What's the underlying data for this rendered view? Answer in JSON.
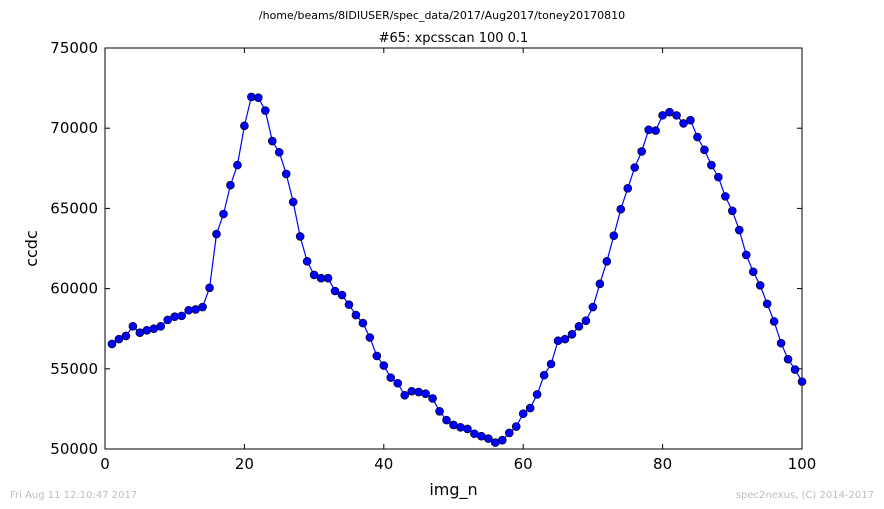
{
  "header": {
    "suptitle": "/home/beams/8IDIUSER/spec_data/2017/Aug2017/toney20170810",
    "title": "#65: xpcsscan 100 0.1"
  },
  "footer": {
    "left": "Fri Aug 11 12:10:47 2017",
    "right": "spec2nexus, (C) 2014-2017"
  },
  "colors": {
    "series": "#0000ff",
    "axes": "#000000",
    "footer": "#bdbdbd"
  },
  "chart_data": {
    "type": "line",
    "title": "#65: xpcsscan 100 0.1",
    "xlabel": "img_n",
    "ylabel": "ccdc",
    "xlim": [
      0,
      100
    ],
    "ylim": [
      50000,
      75000
    ],
    "xticks": [
      "0",
      "20",
      "40",
      "60",
      "80",
      "100"
    ],
    "yticks": [
      "50000",
      "55000",
      "60000",
      "65000",
      "70000",
      "75000"
    ],
    "xtick_values": [
      0,
      20,
      40,
      60,
      80,
      100
    ],
    "ytick_values": [
      50000,
      55000,
      60000,
      65000,
      70000,
      75000
    ],
    "grid": false,
    "marker": "circle",
    "x": [
      1,
      2,
      3,
      4,
      5,
      6,
      7,
      8,
      9,
      10,
      11,
      12,
      13,
      14,
      15,
      16,
      17,
      18,
      19,
      20,
      21,
      22,
      23,
      24,
      25,
      26,
      27,
      28,
      29,
      30,
      31,
      32,
      33,
      34,
      35,
      36,
      37,
      38,
      39,
      40,
      41,
      42,
      43,
      44,
      45,
      46,
      47,
      48,
      49,
      50,
      51,
      52,
      53,
      54,
      55,
      56,
      57,
      58,
      59,
      60,
      61,
      62,
      63,
      64,
      65,
      66,
      67,
      68,
      69,
      70,
      71,
      72,
      73,
      74,
      75,
      76,
      77,
      78,
      79,
      80,
      81,
      82,
      83,
      84,
      85,
      86,
      87,
      88,
      89,
      90,
      91,
      92,
      93,
      94,
      95,
      96,
      97,
      98,
      99,
      100
    ],
    "y": [
      56550,
      56850,
      57050,
      57650,
      57250,
      57400,
      57500,
      57650,
      58050,
      58250,
      58300,
      58650,
      58700,
      58850,
      60050,
      63400,
      64650,
      66450,
      67700,
      70150,
      71950,
      71900,
      71100,
      69200,
      68500,
      67150,
      65400,
      63250,
      61700,
      60850,
      60650,
      60650,
      59850,
      59600,
      59000,
      58350,
      57850,
      56950,
      55800,
      55200,
      54450,
      54100,
      53350,
      53600,
      53550,
      53450,
      53150,
      52350,
      51800,
      51500,
      51350,
      51250,
      50950,
      50800,
      50650,
      50400,
      50550,
      51000,
      51400,
      52200,
      52550,
      53400,
      54600,
      55300,
      56750,
      56850,
      57150,
      57650,
      58000,
      58850,
      60300,
      61700,
      63300,
      64950,
      66250,
      67550,
      68550,
      69900,
      69850,
      70800,
      71000,
      70800,
      70300,
      70500,
      69450,
      68650,
      67700,
      66950,
      65750,
      64850,
      63650,
      62100,
      61050,
      60200,
      59050,
      57950,
      56600,
      55600,
      54950,
      54200
    ]
  }
}
